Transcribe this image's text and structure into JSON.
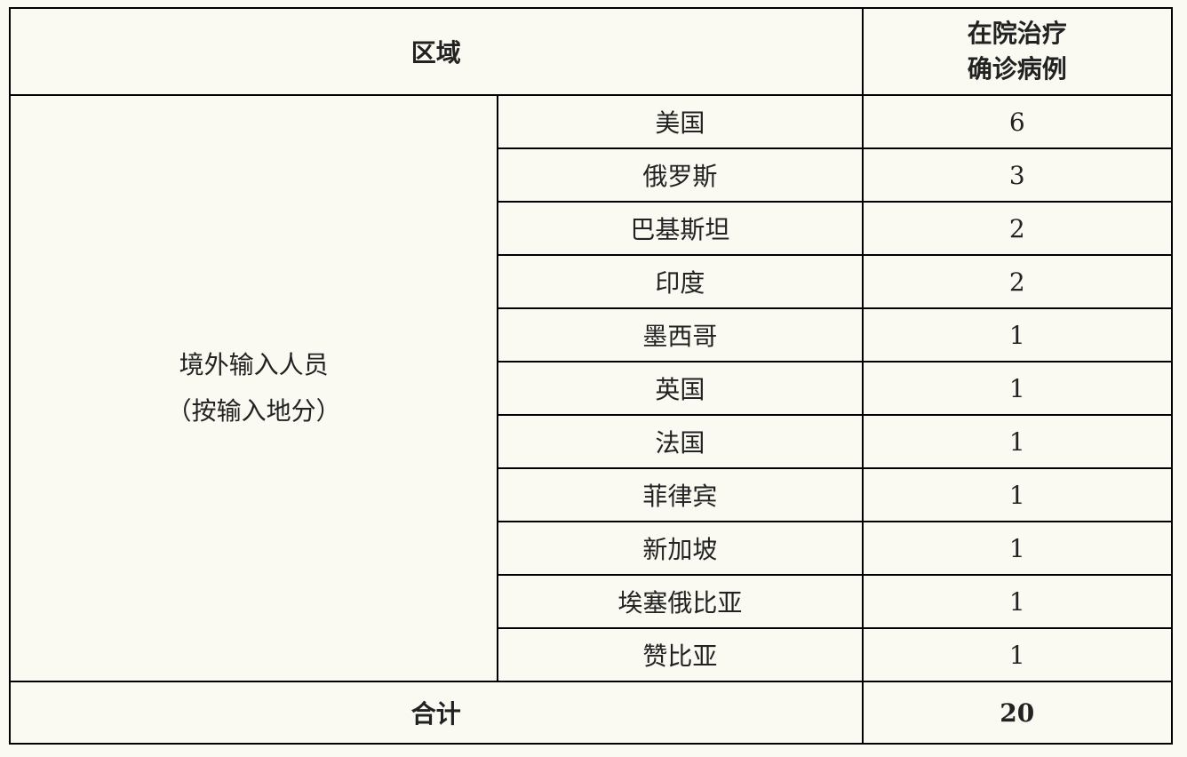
{
  "header": {
    "region": "区域",
    "count_line1": "在院治疗",
    "count_line2": "确诊病例"
  },
  "group": {
    "line1": "境外输入人员",
    "line2": "（按输入地分）"
  },
  "rows": [
    {
      "country": "美国",
      "count": "6"
    },
    {
      "country": "俄罗斯",
      "count": "3"
    },
    {
      "country": "巴基斯坦",
      "count": "2"
    },
    {
      "country": "印度",
      "count": "2"
    },
    {
      "country": "墨西哥",
      "count": "1"
    },
    {
      "country": "英国",
      "count": "1"
    },
    {
      "country": "法国",
      "count": "1"
    },
    {
      "country": "菲律宾",
      "count": "1"
    },
    {
      "country": "新加坡",
      "count": "1"
    },
    {
      "country": "埃塞俄比亚",
      "count": "1"
    },
    {
      "country": "赞比亚",
      "count": "1"
    }
  ],
  "total": {
    "label": "合计",
    "count": "20"
  }
}
